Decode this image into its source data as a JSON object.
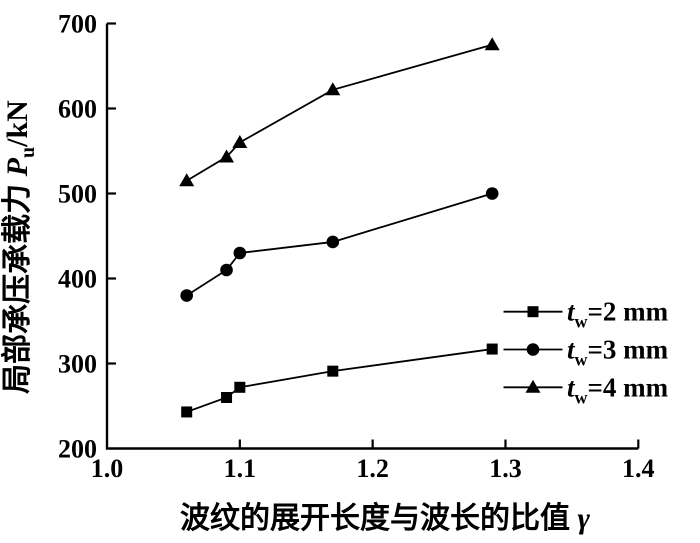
{
  "figure": {
    "background": "#ffffff",
    "ink": "#000000"
  },
  "chart_data": {
    "type": "line",
    "title": "",
    "xlabel": "波纹的展开长度与波长的比值 γ",
    "xlabel_text": "波纹的展开长度与波长的比值",
    "xlabel_symbol": "γ",
    "ylabel": "局部承压承载力 Pu/kN",
    "ylabel_text": "局部承压承载力",
    "ylabel_symbol": "P",
    "ylabel_symbol_sub": "u",
    "ylabel_unit": "/kN",
    "xlim": [
      1.0,
      1.4
    ],
    "ylim": [
      200,
      700
    ],
    "x_ticks": [
      1.0,
      1.1,
      1.2,
      1.3,
      1.4
    ],
    "x_tick_labels": [
      "1.0",
      "1.1",
      "1.2",
      "1.3",
      "1.4"
    ],
    "y_ticks": [
      200,
      300,
      400,
      500,
      600,
      700
    ],
    "y_tick_labels": [
      "200",
      "300",
      "400",
      "500",
      "600",
      "700"
    ],
    "grid": false,
    "legend": {
      "position": "inside-right-middle",
      "border": false
    },
    "x": [
      1.06,
      1.09,
      1.1,
      1.17,
      1.29
    ],
    "series": [
      {
        "label": "tw=2 mm",
        "symbol": "t",
        "symbol_sub": "w",
        "rest": "=2 mm",
        "marker": "square",
        "values": [
          243,
          260,
          272,
          291,
          317
        ]
      },
      {
        "label": "tw=3 mm",
        "symbol": "t",
        "symbol_sub": "w",
        "rest": "=3 mm",
        "marker": "circle",
        "values": [
          380,
          410,
          430,
          443,
          500
        ]
      },
      {
        "label": "tw=4 mm",
        "symbol": "t",
        "symbol_sub": "w",
        "rest": "=4 mm",
        "marker": "triangle",
        "values": [
          515,
          543,
          560,
          622,
          675
        ]
      }
    ],
    "colors": {
      "ink": "#000000",
      "background": "#ffffff"
    }
  }
}
